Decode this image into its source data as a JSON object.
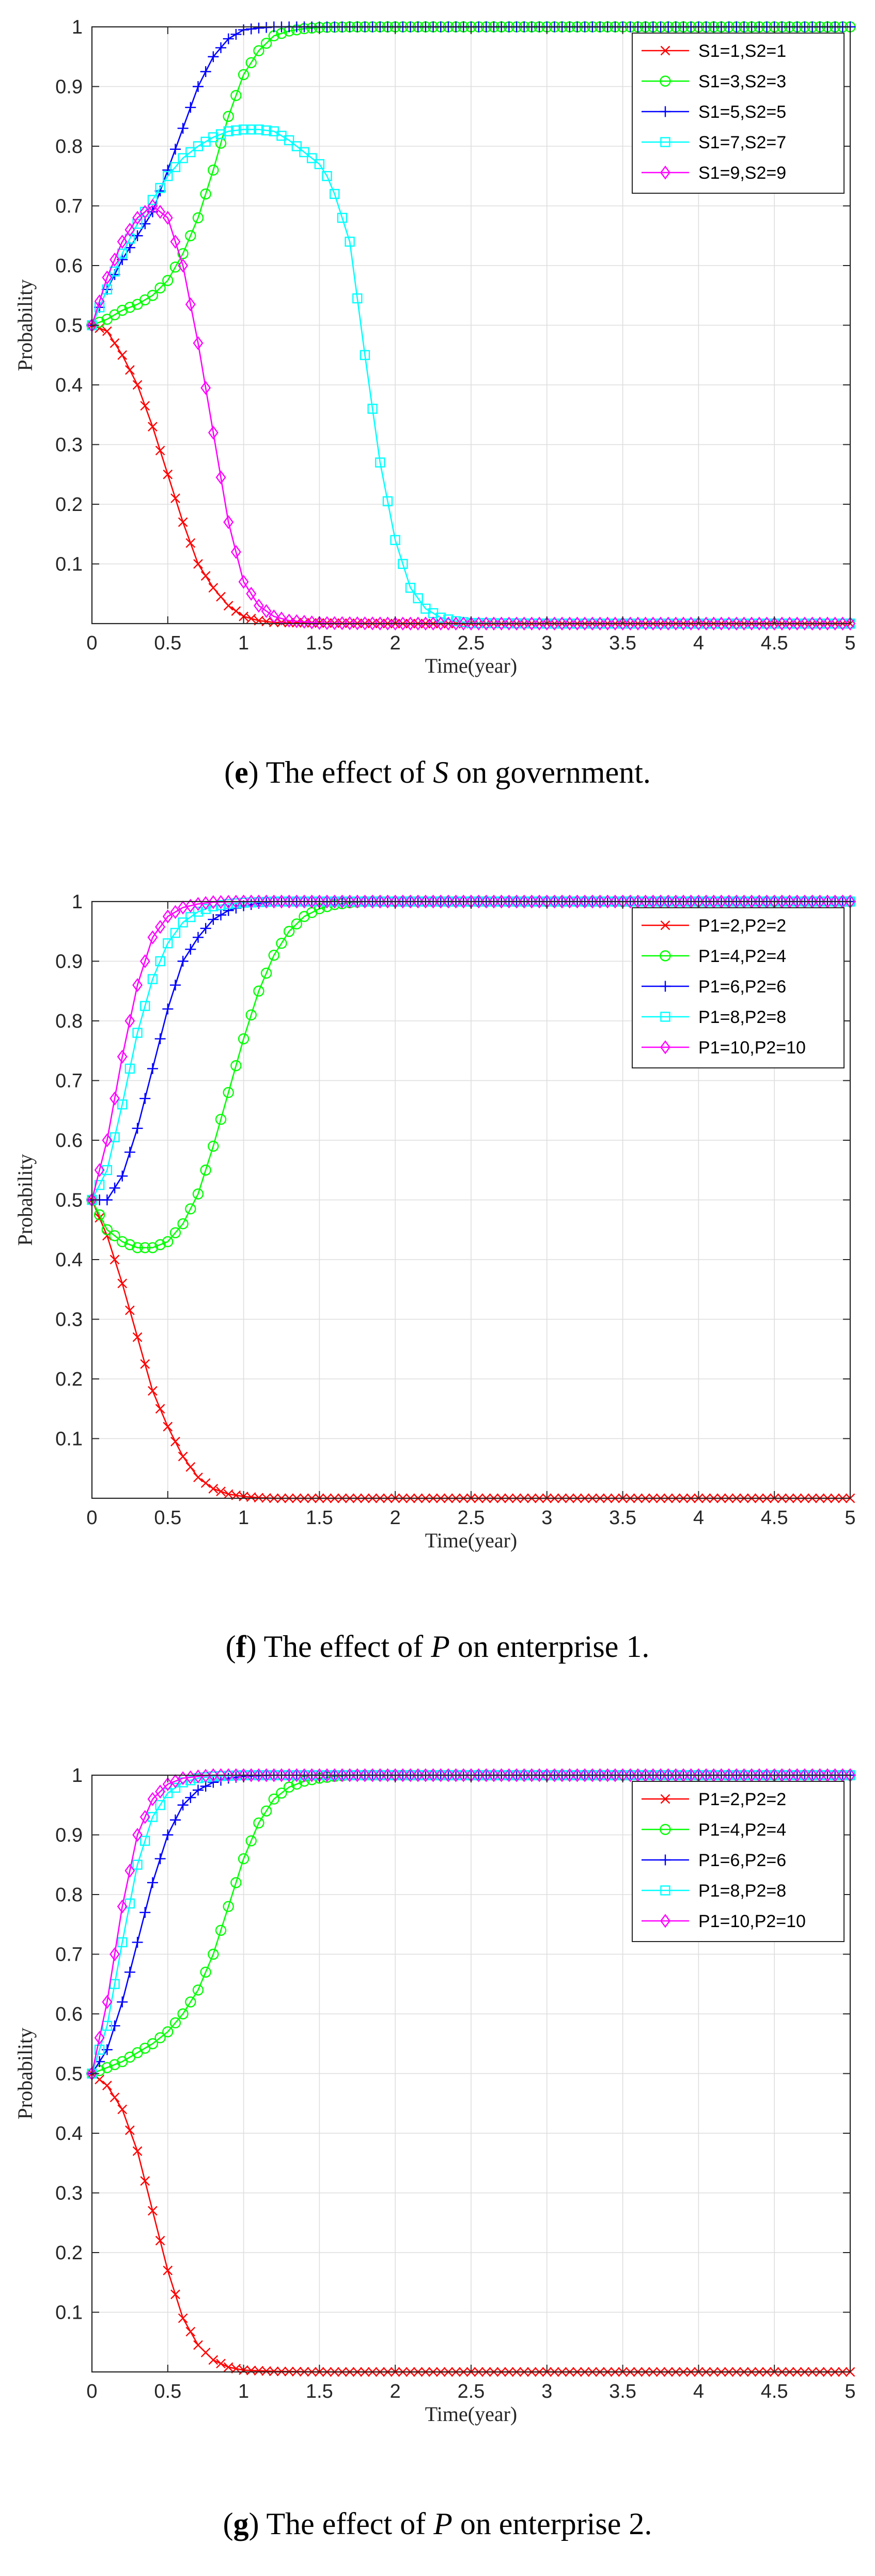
{
  "chart_data": [
    {
      "type": "line",
      "panel": "e",
      "caption": {
        "letter": "e",
        "pre": " The effect of ",
        "var": "S",
        "post": " on government."
      },
      "xlabel": "Time(year)",
      "ylabel": "Probability",
      "xlim": [
        0,
        5
      ],
      "ylim": [
        0,
        1
      ],
      "xticks": [
        0,
        0.5,
        1,
        1.5,
        2,
        2.5,
        3,
        3.5,
        4,
        4.5,
        5
      ],
      "yticks": [
        0.1,
        0.2,
        0.3,
        0.4,
        0.5,
        0.6,
        0.7,
        0.8,
        0.9,
        1
      ],
      "grid": true,
      "legend_position": "top-right",
      "series": [
        {
          "name": "S1=1,S2=1",
          "color": "#ff0000",
          "marker": "x",
          "x": [
            0,
            0.1,
            0.2,
            0.3,
            0.4,
            0.5,
            0.6,
            0.7,
            0.8,
            0.9,
            1.0,
            1.1,
            1.2,
            1.5,
            2,
            5
          ],
          "y": [
            0.5,
            0.49,
            0.45,
            0.4,
            0.33,
            0.25,
            0.17,
            0.1,
            0.06,
            0.03,
            0.012,
            0.005,
            0.002,
            0.001,
            0,
            0
          ]
        },
        {
          "name": "S1=3,S2=3",
          "color": "#00ff00",
          "marker": "o",
          "x": [
            0,
            0.1,
            0.2,
            0.3,
            0.4,
            0.5,
            0.6,
            0.7,
            0.8,
            0.9,
            1.0,
            1.1,
            1.2,
            1.3,
            1.4,
            1.5,
            1.7,
            2,
            5
          ],
          "y": [
            0.5,
            0.51,
            0.525,
            0.535,
            0.55,
            0.575,
            0.62,
            0.68,
            0.76,
            0.85,
            0.92,
            0.96,
            0.985,
            0.993,
            0.997,
            0.999,
            1,
            1,
            1
          ]
        },
        {
          "name": "S1=5,S2=5",
          "color": "#0000ff",
          "marker": "+",
          "x": [
            0,
            0.1,
            0.2,
            0.3,
            0.4,
            0.5,
            0.6,
            0.7,
            0.8,
            0.9,
            1.0,
            1.1,
            1.2,
            1.5,
            2,
            5
          ],
          "y": [
            0.5,
            0.56,
            0.61,
            0.65,
            0.69,
            0.76,
            0.83,
            0.9,
            0.95,
            0.98,
            0.995,
            0.998,
            1,
            1,
            1,
            1
          ]
        },
        {
          "name": "S1=7,S2=7",
          "color": "#00ffff",
          "marker": "s",
          "x": [
            0,
            0.1,
            0.2,
            0.3,
            0.4,
            0.5,
            0.6,
            0.7,
            0.8,
            0.9,
            1.0,
            1.1,
            1.2,
            1.3,
            1.4,
            1.5,
            1.55,
            1.6,
            1.7,
            1.8,
            1.9,
            2.0,
            2.1,
            2.2,
            2.3,
            2.4,
            2.5,
            3,
            5
          ],
          "y": [
            0.5,
            0.56,
            0.62,
            0.67,
            0.71,
            0.75,
            0.78,
            0.8,
            0.815,
            0.825,
            0.828,
            0.828,
            0.825,
            0.81,
            0.79,
            0.77,
            0.75,
            0.72,
            0.64,
            0.45,
            0.27,
            0.14,
            0.06,
            0.025,
            0.01,
            0.004,
            0.001,
            0,
            0
          ]
        },
        {
          "name": "S1=9,S2=9",
          "color": "#ff00ff",
          "marker": "d",
          "x": [
            0,
            0.1,
            0.2,
            0.3,
            0.4,
            0.5,
            0.6,
            0.7,
            0.8,
            0.9,
            1.0,
            1.1,
            1.2,
            1.3,
            1.5,
            2,
            5
          ],
          "y": [
            0.5,
            0.58,
            0.64,
            0.68,
            0.7,
            0.68,
            0.6,
            0.47,
            0.32,
            0.17,
            0.07,
            0.03,
            0.012,
            0.005,
            0.001,
            0,
            0
          ]
        }
      ]
    },
    {
      "type": "line",
      "panel": "f",
      "caption": {
        "letter": "f",
        "pre": " The effect of ",
        "var": "P",
        "post": " on enterprise 1."
      },
      "xlabel": "Time(year)",
      "ylabel": "Probability",
      "xlim": [
        0,
        5
      ],
      "ylim": [
        0,
        1
      ],
      "xticks": [
        0,
        0.5,
        1,
        1.5,
        2,
        2.5,
        3,
        3.5,
        4,
        4.5,
        5
      ],
      "yticks": [
        0.1,
        0.2,
        0.3,
        0.4,
        0.5,
        0.6,
        0.7,
        0.8,
        0.9,
        1
      ],
      "grid": true,
      "legend_position": "top-right",
      "series": [
        {
          "name": "P1=2,P2=2",
          "color": "#ff0000",
          "marker": "x",
          "x": [
            0,
            0.1,
            0.2,
            0.3,
            0.4,
            0.5,
            0.6,
            0.7,
            0.8,
            0.9,
            1.0,
            1.1,
            1.2,
            1.5,
            2,
            5
          ],
          "y": [
            0.5,
            0.44,
            0.36,
            0.27,
            0.18,
            0.12,
            0.07,
            0.035,
            0.016,
            0.007,
            0.003,
            0.001,
            0,
            0,
            0,
            0
          ]
        },
        {
          "name": "P1=4,P2=4",
          "color": "#00ff00",
          "marker": "o",
          "x": [
            0,
            0.1,
            0.2,
            0.3,
            0.4,
            0.5,
            0.6,
            0.7,
            0.8,
            0.9,
            1.0,
            1.1,
            1.2,
            1.3,
            1.4,
            1.5,
            1.6,
            1.7,
            1.8,
            2,
            5
          ],
          "y": [
            0.5,
            0.45,
            0.43,
            0.42,
            0.42,
            0.43,
            0.46,
            0.51,
            0.59,
            0.68,
            0.77,
            0.85,
            0.91,
            0.95,
            0.975,
            0.988,
            0.995,
            0.998,
            1,
            1,
            1
          ]
        },
        {
          "name": "P1=6,P2=6",
          "color": "#0000ff",
          "marker": "+",
          "x": [
            0,
            0.1,
            0.2,
            0.3,
            0.4,
            0.5,
            0.6,
            0.7,
            0.8,
            0.9,
            1.0,
            1.1,
            1.2,
            1.5,
            2,
            5
          ],
          "y": [
            0.5,
            0.5,
            0.54,
            0.62,
            0.72,
            0.82,
            0.9,
            0.94,
            0.97,
            0.985,
            0.993,
            0.997,
            1,
            1,
            1,
            1
          ]
        },
        {
          "name": "P1=8,P2=8",
          "color": "#00ffff",
          "marker": "s",
          "x": [
            0,
            0.1,
            0.2,
            0.3,
            0.4,
            0.5,
            0.6,
            0.7,
            0.8,
            0.9,
            1.0,
            1.2,
            1.5,
            2,
            5
          ],
          "y": [
            0.5,
            0.55,
            0.66,
            0.78,
            0.87,
            0.93,
            0.965,
            0.983,
            0.992,
            0.996,
            0.998,
            1,
            1,
            1,
            1
          ]
        },
        {
          "name": "P1=10,P2=10",
          "color": "#ff00ff",
          "marker": "d",
          "x": [
            0,
            0.1,
            0.2,
            0.3,
            0.4,
            0.5,
            0.6,
            0.7,
            0.8,
            1.0,
            1.2,
            1.5,
            2,
            5
          ],
          "y": [
            0.5,
            0.6,
            0.74,
            0.86,
            0.94,
            0.975,
            0.99,
            0.996,
            0.999,
            1,
            1,
            1,
            1,
            1
          ]
        }
      ]
    },
    {
      "type": "line",
      "panel": "g",
      "caption": {
        "letter": "g",
        "pre": " The effect of ",
        "var": "P",
        "post": " on enterprise 2."
      },
      "xlabel": "Time(year)",
      "ylabel": "Probability",
      "xlim": [
        0,
        5
      ],
      "ylim": [
        0,
        1
      ],
      "xticks": [
        0,
        0.5,
        1,
        1.5,
        2,
        2.5,
        3,
        3.5,
        4,
        4.5,
        5
      ],
      "yticks": [
        0.1,
        0.2,
        0.3,
        0.4,
        0.5,
        0.6,
        0.7,
        0.8,
        0.9,
        1
      ],
      "grid": true,
      "legend_position": "top-right",
      "series": [
        {
          "name": "P1=2,P2=2",
          "color": "#ff0000",
          "marker": "x",
          "x": [
            0,
            0.1,
            0.2,
            0.3,
            0.4,
            0.5,
            0.6,
            0.7,
            0.8,
            0.9,
            1.0,
            1.2,
            1.5,
            2,
            5
          ],
          "y": [
            0.5,
            0.48,
            0.44,
            0.37,
            0.27,
            0.17,
            0.09,
            0.045,
            0.02,
            0.008,
            0.003,
            0.001,
            0,
            0,
            0
          ]
        },
        {
          "name": "P1=4,P2=4",
          "color": "#00ff00",
          "marker": "o",
          "x": [
            0,
            0.1,
            0.2,
            0.3,
            0.4,
            0.5,
            0.6,
            0.7,
            0.8,
            0.9,
            1.0,
            1.1,
            1.2,
            1.3,
            1.4,
            1.5,
            1.6,
            1.7,
            1.8,
            2,
            5
          ],
          "y": [
            0.5,
            0.51,
            0.52,
            0.535,
            0.55,
            0.57,
            0.6,
            0.64,
            0.7,
            0.78,
            0.86,
            0.92,
            0.96,
            0.98,
            0.99,
            0.995,
            0.998,
            1,
            1,
            1,
            1
          ]
        },
        {
          "name": "P1=6,P2=6",
          "color": "#0000ff",
          "marker": "+",
          "x": [
            0,
            0.1,
            0.2,
            0.3,
            0.4,
            0.5,
            0.6,
            0.7,
            0.8,
            0.9,
            1.0,
            1.2,
            1.5,
            2,
            5
          ],
          "y": [
            0.5,
            0.54,
            0.62,
            0.72,
            0.82,
            0.9,
            0.95,
            0.975,
            0.988,
            0.995,
            0.998,
            1,
            1,
            1,
            1
          ]
        },
        {
          "name": "P1=8,P2=8",
          "color": "#00ffff",
          "marker": "s",
          "x": [
            0,
            0.1,
            0.2,
            0.3,
            0.4,
            0.5,
            0.6,
            0.7,
            0.8,
            1.0,
            1.2,
            1.5,
            2,
            5
          ],
          "y": [
            0.5,
            0.58,
            0.72,
            0.85,
            0.93,
            0.97,
            0.988,
            0.995,
            0.998,
            1,
            1,
            1,
            1,
            1
          ]
        },
        {
          "name": "P1=10,P2=10",
          "color": "#ff00ff",
          "marker": "d",
          "x": [
            0,
            0.1,
            0.2,
            0.3,
            0.4,
            0.5,
            0.6,
            0.7,
            0.8,
            1.0,
            1.2,
            1.5,
            2,
            5
          ],
          "y": [
            0.5,
            0.62,
            0.78,
            0.9,
            0.96,
            0.985,
            0.995,
            0.998,
            1,
            1,
            1,
            1,
            1,
            1
          ]
        }
      ]
    }
  ]
}
